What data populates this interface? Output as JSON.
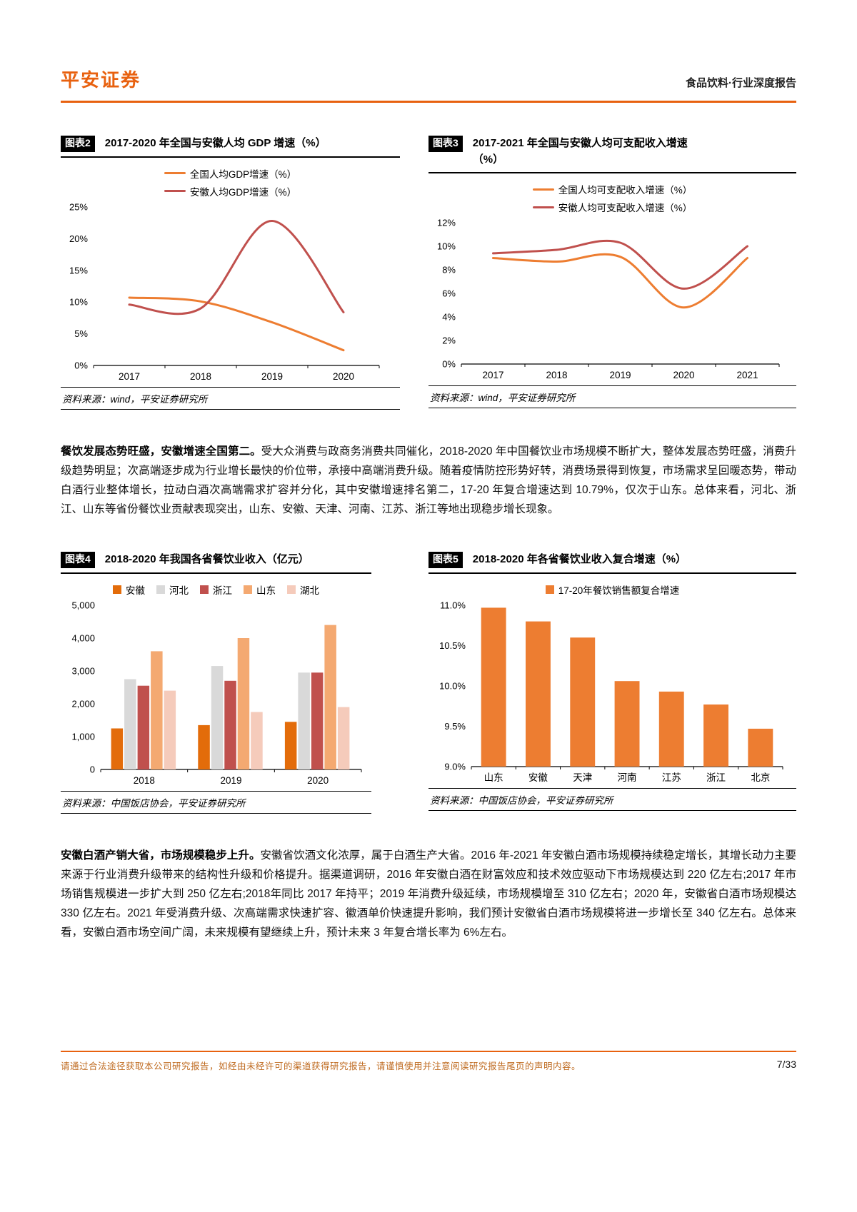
{
  "header": {
    "brand": "平安证券",
    "report_type": "食品饮料·行业深度报告"
  },
  "chart_data": [
    {
      "id": "chart2",
      "tag": "图表2",
      "type": "line",
      "title": "2017-2020 年全国与安徽人均 GDP 增速（%）",
      "x": [
        "2017",
        "2018",
        "2019",
        "2020"
      ],
      "series": [
        {
          "name": "全国人均GDP增速（%）",
          "color": "#ED7D31",
          "values": [
            10.7,
            10.1,
            6.8,
            2.4
          ]
        },
        {
          "name": "安徽人均GDP增速（%）",
          "color": "#C0504D",
          "values": [
            9.6,
            9.0,
            22.8,
            8.4
          ]
        }
      ],
      "ylim": [
        0,
        25
      ],
      "ytick_vals": [
        0,
        5,
        10,
        15,
        20,
        25
      ],
      "ytick_labels": [
        "0%",
        "5%",
        "10%",
        "15%",
        "20%",
        "25%"
      ],
      "legend_position": "top",
      "grid": false,
      "source": "资料来源：wind，平安证券研究所"
    },
    {
      "id": "chart3",
      "tag": "图表3",
      "type": "line",
      "title": "2017-2021 年全国与安徽人均可支配收入增速（%）",
      "x": [
        "2017",
        "2018",
        "2019",
        "2020",
        "2021"
      ],
      "series": [
        {
          "name": "全国人均可支配收入增速（%）",
          "color": "#ED7D31",
          "values": [
            9.0,
            8.7,
            9.1,
            4.8,
            9.0
          ]
        },
        {
          "name": "安徽人均可支配收入增速（%）",
          "color": "#C0504D",
          "values": [
            9.4,
            9.7,
            10.3,
            6.4,
            10.0
          ]
        }
      ],
      "ylim": [
        0,
        12
      ],
      "ytick_vals": [
        0,
        2,
        4,
        6,
        8,
        10,
        12
      ],
      "ytick_labels": [
        "0%",
        "2%",
        "4%",
        "6%",
        "8%",
        "10%",
        "12%"
      ],
      "legend_position": "top",
      "grid": false,
      "source": "资料来源：wind，平安证券研究所"
    },
    {
      "id": "chart4",
      "tag": "图表4",
      "type": "bar",
      "title": "2018-2020 年我国各省餐饮业收入（亿元）",
      "categories": [
        "2018",
        "2019",
        "2020"
      ],
      "series": [
        {
          "name": "安徽",
          "color": "#E36C0A",
          "values": [
            1250,
            1350,
            1450
          ]
        },
        {
          "name": "河北",
          "color": "#D9D9D9",
          "values": [
            2750,
            3150,
            2950
          ]
        },
        {
          "name": "浙江",
          "color": "#C0504D",
          "values": [
            2550,
            2700,
            2950
          ]
        },
        {
          "name": "山东",
          "color": "#F4A971",
          "values": [
            3600,
            4000,
            4400
          ]
        },
        {
          "name": "湖北",
          "color": "#F5CBBB",
          "values": [
            2400,
            1750,
            1900
          ]
        }
      ],
      "ylim": [
        0,
        5000
      ],
      "ytick_vals": [
        0,
        1000,
        2000,
        3000,
        4000,
        5000
      ],
      "ytick_labels": [
        "0",
        "1,000",
        "2,000",
        "3,000",
        "4,000",
        "5,000"
      ],
      "legend_position": "top",
      "grid": false,
      "source": "资料来源：中国饭店协会，平安证券研究所"
    },
    {
      "id": "chart5",
      "tag": "图表5",
      "type": "bar",
      "title": "2018-2020 年各省餐饮业收入复合增速（%）",
      "categories": [
        "山东",
        "安徽",
        "天津",
        "河南",
        "江苏",
        "浙江",
        "北京"
      ],
      "series": [
        {
          "name": "17-20年餐饮销售额复合增速",
          "color": "#ED7D31",
          "values": [
            10.97,
            10.8,
            10.6,
            10.06,
            9.93,
            9.77,
            9.47
          ]
        }
      ],
      "ylim": [
        9.0,
        11.0
      ],
      "ytick_vals": [
        9.0,
        9.5,
        10.0,
        10.5,
        11.0
      ],
      "ytick_labels": [
        "9.0%",
        "9.5%",
        "10.0%",
        "10.5%",
        "11.0%"
      ],
      "legend_position": "top",
      "grid": false,
      "source": "资料来源：中国饭店协会，平安证券研究所"
    }
  ],
  "paragraphs": {
    "p1": {
      "lead": "餐饮发展态势旺盛，安徽增速全国第二。",
      "body": "受大众消费与政商务消费共同催化，2018-2020 年中国餐饮业市场规模不断扩大，整体发展态势旺盛，消费升级趋势明显；次高端逐步成为行业增长最快的价位带，承接中高端消费升级。随着疫情防控形势好转，消费场景得到恢复，市场需求呈回暖态势，带动白酒行业整体增长，拉动白酒次高端需求扩容并分化，其中安徽增速排名第二，17-20 年复合增速达到 10.79%，仅次于山东。总体来看，河北、浙江、山东等省份餐饮业贡献表现突出，山东、安徽、天津、河南、江苏、浙江等地出现稳步增长现象。"
    },
    "p2": {
      "lead": "安徽白酒产销大省，市场规模稳步上升。",
      "body": "安徽省饮酒文化浓厚，属于白酒生产大省。2016 年-2021 年安徽白酒市场规模持续稳定增长，其增长动力主要来源于行业消费升级带来的结构性升级和价格提升。据渠道调研，2016 年安徽白酒在财富效应和技术效应驱动下市场规模达到 220 亿左右;2017 年市场销售规模进一步扩大到 250 亿左右;2018年同比 2017 年持平；2019 年消费升级延续，市场规模增至 310 亿左右；2020 年，安徽省白酒市场规模达 330 亿左右。2021 年受消费升级、次高端需求快速扩容、徽酒单价快速提升影响，我们预计安徽省白酒市场规模将进一步增长至 340 亿左右。总体来看，安徽白酒市场空间广阔，未来规模有望继续上升，预计未来 3 年复合增长率为 6%左右。"
    }
  },
  "footer": {
    "disclaimer": "请通过合法途径获取本公司研究报告，如经由未经许可的渠道获得研究报告，请谨慎使用并注意阅读研究报告尾页的声明内容。",
    "page_number": "7/33"
  }
}
